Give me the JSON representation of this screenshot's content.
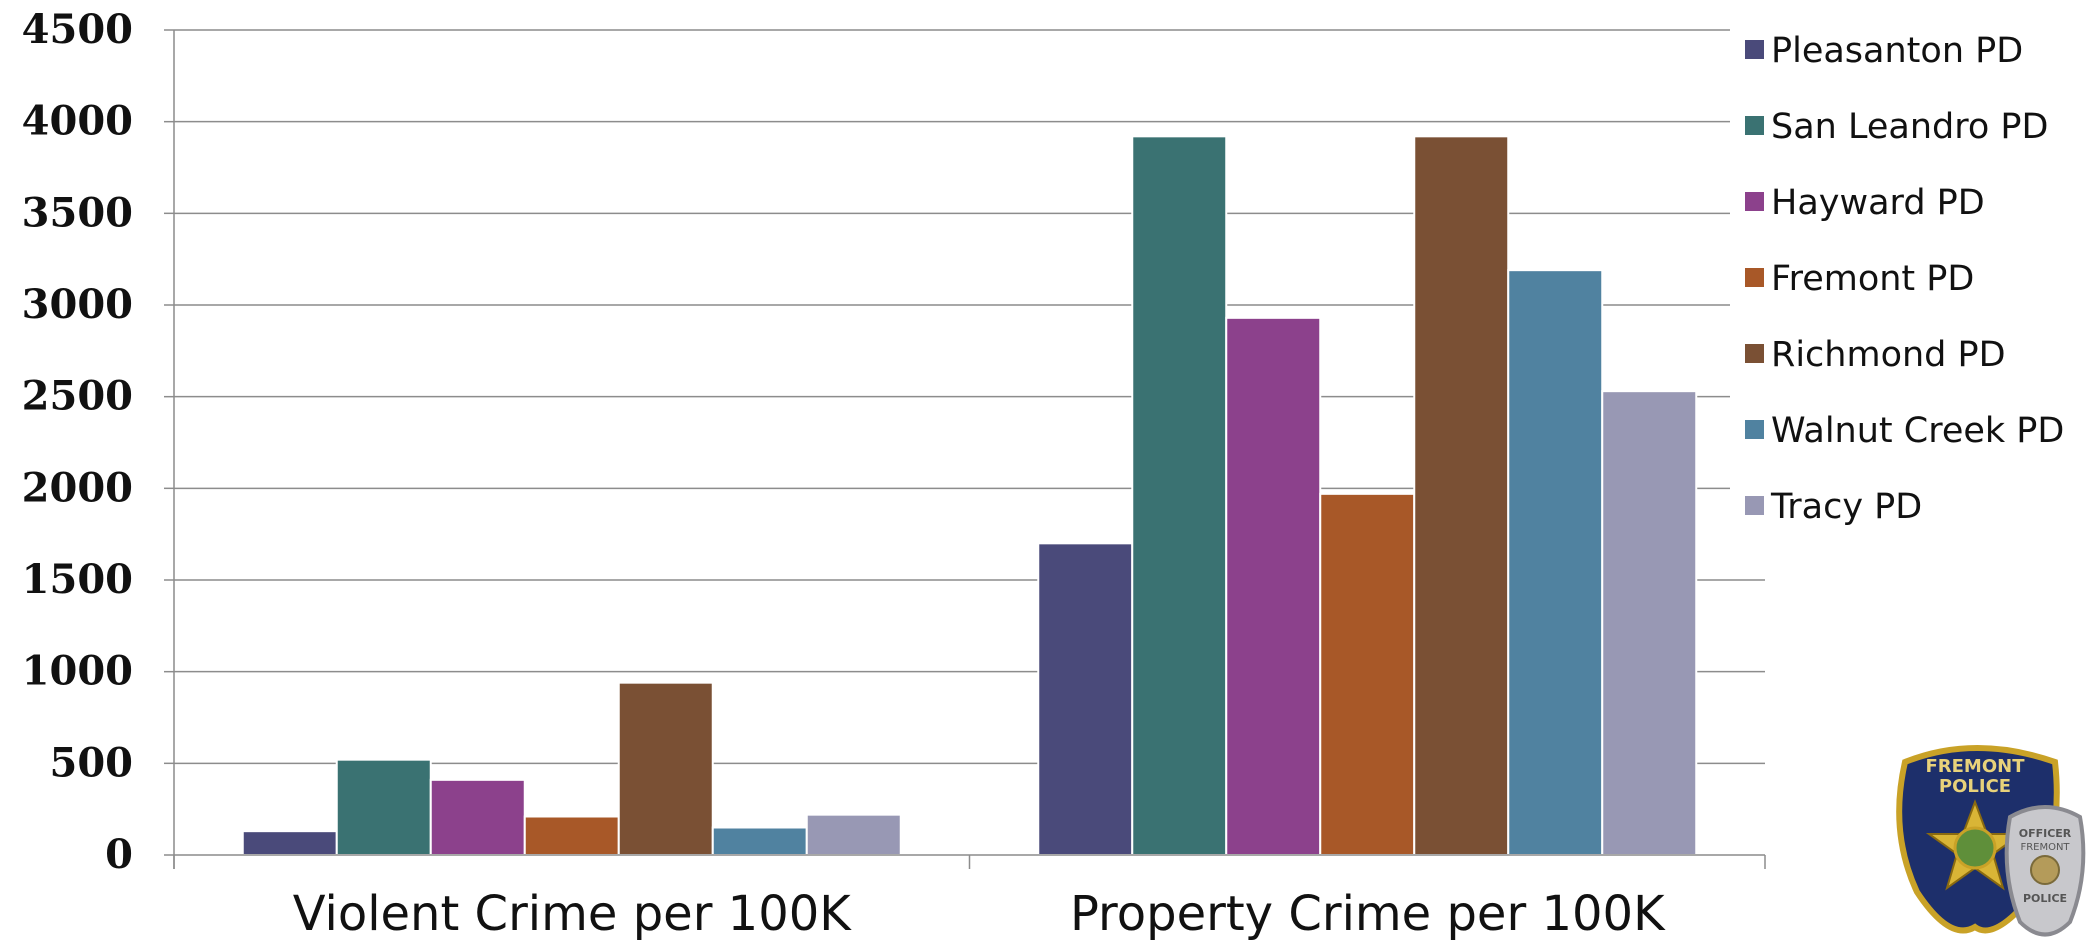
{
  "chart_data": {
    "type": "bar",
    "title": "",
    "xlabel": "",
    "ylabel": "",
    "categories": [
      "Violent Crime per 100K",
      "Property Crime per 100K"
    ],
    "ylim": [
      0,
      4500
    ],
    "yticks": [
      0,
      500,
      1000,
      1500,
      2000,
      2500,
      3000,
      3500,
      4000,
      4500
    ],
    "grid": "horizontal",
    "legend_position": "right",
    "series": [
      {
        "name": "Pleasanton PD",
        "color": "#4a4a7a",
        "values": [
          130,
          1700
        ]
      },
      {
        "name": "San Leandro PD",
        "color": "#3a7272",
        "values": [
          520,
          3920
        ]
      },
      {
        "name": "Hayward PD",
        "color": "#8c418c",
        "values": [
          410,
          2930
        ]
      },
      {
        "name": "Fremont PD",
        "color": "#a85828",
        "values": [
          210,
          1970
        ]
      },
      {
        "name": "Richmond PD",
        "color": "#7a5034",
        "values": [
          940,
          3920
        ]
      },
      {
        "name": "Walnut Creek PD",
        "color": "#5082a0",
        "values": [
          150,
          3190
        ]
      },
      {
        "name": "Tracy PD",
        "color": "#9898b4",
        "values": [
          220,
          2530
        ]
      }
    ]
  },
  "logo": {
    "badge_text_top": "FREMONT",
    "badge_text_bottom": "POLICE",
    "shield_text_1": "OFFICER",
    "shield_text_2": "FREMONT",
    "shield_text_3": "POLICE"
  }
}
